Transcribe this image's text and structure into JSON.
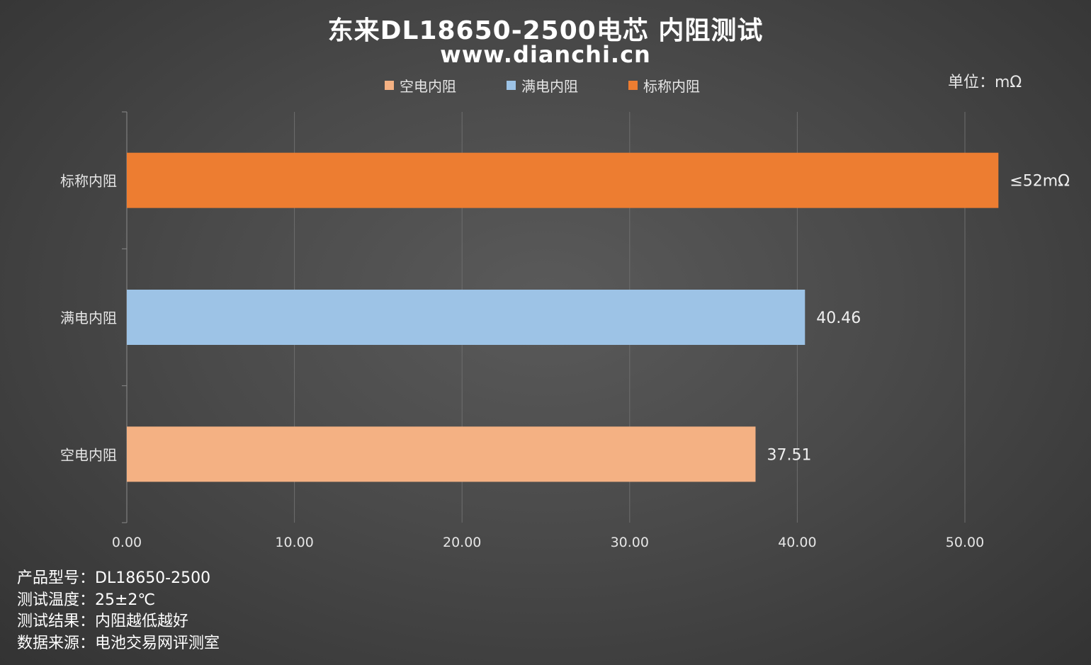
{
  "title": "东来DL18650-2500电芯 内阻测试",
  "subtitle": "www.dianchi.cn",
  "unit_label": "单位：mΩ",
  "notes": [
    "产品型号：DL18650-2500",
    "测试温度：25±2℃",
    "测试结果：内阻越低越好",
    "数据来源：电池交易网评测室"
  ],
  "chart_data": {
    "type": "bar",
    "orientation": "horizontal",
    "title": "东来DL18650-2500电芯 内阻测试",
    "categories": [
      "标称内阻",
      "满电内阻",
      "空电内阻"
    ],
    "values": [
      52,
      40.46,
      37.51
    ],
    "data_labels": [
      "≤52mΩ",
      "40.46",
      "37.51"
    ],
    "colors": [
      "#ED7D31",
      "#9DC3E6",
      "#F4B183"
    ],
    "legend": [
      {
        "name": "空电内阻",
        "color": "#F4B183"
      },
      {
        "name": "满电内阻",
        "color": "#9DC3E6"
      },
      {
        "name": "标称内阻",
        "color": "#ED7D31"
      }
    ],
    "legend_position": "top",
    "xlim": [
      0,
      50
    ],
    "xticks": [
      0,
      10,
      20,
      30,
      40,
      50
    ],
    "xtick_labels": [
      "0.00",
      "10.00",
      "20.00",
      "30.00",
      "40.00",
      "50.00"
    ],
    "grid": true,
    "unit": "mΩ"
  }
}
